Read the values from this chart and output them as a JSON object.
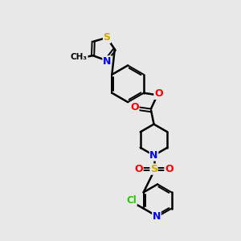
{
  "bg_color": "#e8e8e8",
  "bond_color": "#000000",
  "atom_colors": {
    "N": "#0000ff",
    "O": "#ff0000",
    "S_thiazole": "#ccaa00",
    "S_sulfonyl": "#ccaa00",
    "Cl": "#22cc00",
    "C": "#000000"
  },
  "figsize": [
    3.0,
    3.0
  ],
  "dpi": 100,
  "xlim": [
    0,
    10
  ],
  "ylim": [
    0,
    13
  ]
}
